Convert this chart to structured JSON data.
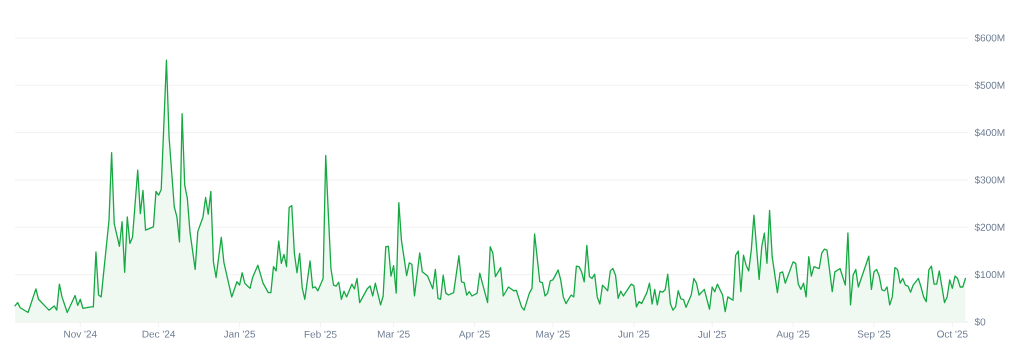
{
  "chart_data": {
    "type": "area",
    "color": "#16a843",
    "grid": "y",
    "x": [
      "2024-10-07",
      "2024-10-08",
      "2024-10-09",
      "2024-10-12",
      "2024-10-15",
      "2024-10-16",
      "2024-10-20",
      "2024-10-22",
      "2024-10-23",
      "2024-10-24",
      "2024-10-25",
      "2024-10-27",
      "2024-10-30",
      "2024-10-31",
      "2024-11-01",
      "2024-11-02",
      "2024-11-05",
      "2024-11-06",
      "2024-11-07",
      "2024-11-08",
      "2024-11-09",
      "2024-11-12",
      "2024-11-13",
      "2024-11-14",
      "2024-11-16",
      "2024-11-17",
      "2024-11-18",
      "2024-11-19",
      "2024-11-20",
      "2024-11-21",
      "2024-11-23",
      "2024-11-24",
      "2024-11-25",
      "2024-11-26",
      "2024-11-29",
      "2024-11-30",
      "2024-12-01",
      "2024-12-02",
      "2024-12-04",
      "2024-12-05",
      "2024-12-07",
      "2024-12-08",
      "2024-12-09",
      "2024-12-10",
      "2024-12-11",
      "2024-12-12",
      "2024-12-13",
      "2024-12-15",
      "2024-12-16",
      "2024-12-18",
      "2024-12-19",
      "2024-12-20",
      "2024-12-21",
      "2024-12-22",
      "2024-12-23",
      "2024-12-25",
      "2024-12-26",
      "2024-12-29",
      "2024-12-31",
      "2025-01-01",
      "2025-01-02",
      "2025-01-03",
      "2025-01-05",
      "2025-01-06",
      "2025-01-08",
      "2025-01-10",
      "2025-01-12",
      "2025-01-13",
      "2025-01-14",
      "2025-01-15",
      "2025-01-16",
      "2025-01-17",
      "2025-01-18",
      "2025-01-19",
      "2025-01-20",
      "2025-01-21",
      "2025-01-22",
      "2025-01-23",
      "2025-01-24",
      "2025-01-25",
      "2025-01-26",
      "2025-01-28",
      "2025-01-29",
      "2025-01-30",
      "2025-01-31",
      "2025-02-02",
      "2025-02-03",
      "2025-02-04",
      "2025-02-05",
      "2025-02-06",
      "2025-02-07",
      "2025-02-08",
      "2025-02-09",
      "2025-02-10",
      "2025-02-11",
      "2025-02-13",
      "2025-02-14",
      "2025-02-15",
      "2025-02-16",
      "2025-02-19",
      "2025-02-20",
      "2025-02-21",
      "2025-02-22",
      "2025-02-24",
      "2025-02-25",
      "2025-02-26",
      "2025-02-27",
      "2025-02-28",
      "2025-03-01",
      "2025-03-02",
      "2025-03-03",
      "2025-03-04",
      "2025-03-06",
      "2025-03-07",
      "2025-03-08",
      "2025-03-09",
      "2025-03-11",
      "2025-03-12",
      "2025-03-14",
      "2025-03-16",
      "2025-03-17",
      "2025-03-18",
      "2025-03-19",
      "2025-03-20",
      "2025-03-21",
      "2025-03-22",
      "2025-03-24",
      "2025-03-26",
      "2025-03-27",
      "2025-03-28",
      "2025-03-29",
      "2025-03-30",
      "2025-03-31",
      "2025-04-02",
      "2025-04-03",
      "2025-04-04",
      "2025-04-06",
      "2025-04-07",
      "2025-04-08",
      "2025-04-09",
      "2025-04-11",
      "2025-04-12",
      "2025-04-14",
      "2025-04-16",
      "2025-04-17",
      "2025-04-19",
      "2025-04-20",
      "2025-04-22",
      "2025-04-23",
      "2025-04-24",
      "2025-04-26",
      "2025-04-27",
      "2025-04-28",
      "2025-04-29",
      "2025-04-30",
      "2025-05-01",
      "2025-05-02",
      "2025-05-03",
      "2025-05-04",
      "2025-05-05",
      "2025-05-06",
      "2025-05-08",
      "2025-05-09",
      "2025-05-10",
      "2025-05-11",
      "2025-05-12",
      "2025-05-13",
      "2025-05-14",
      "2025-05-15",
      "2025-05-16",
      "2025-05-17",
      "2025-05-18",
      "2025-05-19",
      "2025-05-20",
      "2025-05-22",
      "2025-05-23",
      "2025-05-24",
      "2025-05-25",
      "2025-05-26",
      "2025-05-27",
      "2025-05-28",
      "2025-05-31",
      "2025-06-01",
      "2025-06-02",
      "2025-06-03",
      "2025-06-04",
      "2025-06-06",
      "2025-06-07",
      "2025-06-08",
      "2025-06-09",
      "2025-06-10",
      "2025-06-11",
      "2025-06-12",
      "2025-06-13",
      "2025-06-14",
      "2025-06-15",
      "2025-06-16",
      "2025-06-17",
      "2025-06-18",
      "2025-06-19",
      "2025-06-20",
      "2025-06-21",
      "2025-06-23",
      "2025-06-24",
      "2025-06-25",
      "2025-06-26",
      "2025-06-28",
      "2025-06-30",
      "2025-07-01",
      "2025-07-02",
      "2025-07-03",
      "2025-07-05",
      "2025-07-06",
      "2025-07-07",
      "2025-07-09",
      "2025-07-10",
      "2025-07-11",
      "2025-07-12",
      "2025-07-13",
      "2025-07-14",
      "2025-07-15",
      "2025-07-16",
      "2025-07-17",
      "2025-07-19",
      "2025-07-20",
      "2025-07-21",
      "2025-07-22",
      "2025-07-23",
      "2025-07-24",
      "2025-07-26",
      "2025-07-27",
      "2025-07-28",
      "2025-07-29",
      "2025-08-01",
      "2025-08-02",
      "2025-08-03",
      "2025-08-04",
      "2025-08-05",
      "2025-08-06",
      "2025-08-07",
      "2025-08-08",
      "2025-08-09",
      "2025-08-11",
      "2025-08-12",
      "2025-08-13",
      "2025-08-14",
      "2025-08-16",
      "2025-08-17",
      "2025-08-19",
      "2025-08-21",
      "2025-08-22",
      "2025-08-23",
      "2025-08-24",
      "2025-08-25",
      "2025-08-26",
      "2025-08-30",
      "2025-08-31",
      "2025-09-01",
      "2025-09-02",
      "2025-09-03",
      "2025-09-04",
      "2025-09-05",
      "2025-09-06",
      "2025-09-07",
      "2025-09-08",
      "2025-09-09",
      "2025-09-10",
      "2025-09-11",
      "2025-09-12",
      "2025-09-13",
      "2025-09-14",
      "2025-09-15",
      "2025-09-16",
      "2025-09-18",
      "2025-09-19",
      "2025-09-20",
      "2025-09-21",
      "2025-09-22",
      "2025-09-23",
      "2025-09-24",
      "2025-09-25",
      "2025-09-26",
      "2025-09-27",
      "2025-09-28",
      "2025-09-29",
      "2025-09-30",
      "2025-10-01",
      "2025-10-02",
      "2025-10-03",
      "2025-10-04",
      "2025-10-05",
      "2025-10-06"
    ],
    "values": [
      34,
      41,
      30,
      20,
      70,
      48,
      25,
      34,
      25,
      80,
      53,
      20,
      56,
      35,
      48,
      29,
      32,
      32,
      148,
      57,
      53,
      215,
      358,
      208,
      160,
      212,
      105,
      222,
      166,
      179,
      321,
      229,
      278,
      194,
      201,
      276,
      268,
      280,
      553,
      391,
      243,
      222,
      169,
      440,
      289,
      261,
      191,
      111,
      191,
      222,
      263,
      228,
      276,
      127,
      94,
      179,
      126,
      53,
      85,
      78,
      104,
      82,
      71,
      94,
      120,
      82,
      62,
      62,
      117,
      108,
      171,
      124,
      143,
      117,
      242,
      246,
      145,
      104,
      145,
      72,
      48,
      129,
      72,
      74,
      66,
      92,
      352,
      229,
      113,
      78,
      76,
      84,
      48,
      65,
      53,
      80,
      70,
      92,
      41,
      71,
      76,
      55,
      82,
      36,
      55,
      159,
      160,
      97,
      119,
      61,
      252,
      173,
      98,
      125,
      122,
      55,
      146,
      106,
      97,
      70,
      111,
      50,
      48,
      99,
      61,
      57,
      62,
      140,
      85,
      83,
      57,
      64,
      55,
      61,
      103,
      82,
      41,
      159,
      146,
      96,
      115,
      55,
      74,
      66,
      67,
      32,
      25,
      61,
      71,
      186,
      85,
      83,
      55,
      61,
      87,
      89,
      99,
      110,
      89,
      53,
      39,
      57,
      53,
      118,
      117,
      106,
      85,
      162,
      96,
      92,
      101,
      53,
      38,
      78,
      66,
      108,
      113,
      99,
      50,
      65,
      55,
      80,
      77,
      32,
      43,
      39,
      62,
      82,
      38,
      69,
      36,
      65,
      63,
      68,
      101,
      39,
      25,
      32,
      66,
      49,
      48,
      31,
      57,
      92,
      82,
      57,
      69,
      27,
      74,
      64,
      80,
      57,
      22,
      53,
      46,
      141,
      150,
      64,
      141,
      120,
      108,
      152,
      226,
      90,
      159,
      188,
      124,
      236,
      138,
      62,
      104,
      106,
      82,
      127,
      124,
      80,
      69,
      82,
      53,
      138,
      97,
      117,
      113,
      146,
      154,
      152,
      64,
      106,
      113,
      78,
      188,
      36,
      99,
      111,
      74,
      139,
      69,
      106,
      111,
      97,
      68,
      66,
      74,
      36,
      53,
      115,
      111,
      82,
      92,
      78,
      76,
      63,
      78,
      92,
      74,
      53,
      43,
      110,
      118,
      80,
      80,
      108,
      74,
      41,
      53,
      89,
      71,
      97,
      92,
      74,
      74,
      92
    ],
    "xlim": [
      "2024-10-07",
      "2025-10-07"
    ],
    "xticks": [
      {
        "value": "2024-11-01",
        "label": "Nov '24"
      },
      {
        "value": "2024-12-01",
        "label": "Dec '24"
      },
      {
        "value": "2025-01-01",
        "label": "Jan '25"
      },
      {
        "value": "2025-02-01",
        "label": "Feb '25"
      },
      {
        "value": "2025-03-01",
        "label": "Mar '25"
      },
      {
        "value": "2025-04-01",
        "label": "Apr '25"
      },
      {
        "value": "2025-05-01",
        "label": "May '25"
      },
      {
        "value": "2025-06-01",
        "label": "Jun '25"
      },
      {
        "value": "2025-07-01",
        "label": "Jul '25"
      },
      {
        "value": "2025-08-01",
        "label": "Aug '25"
      },
      {
        "value": "2025-09-01",
        "label": "Sep '25"
      },
      {
        "value": "2025-10-01",
        "label": "Oct '25"
      }
    ],
    "ylim": [
      0,
      600
    ],
    "yticks": [
      {
        "value": 0,
        "label": "$0"
      },
      {
        "value": 100,
        "label": "$100M"
      },
      {
        "value": 200,
        "label": "$200M"
      },
      {
        "value": 300,
        "label": "$300M"
      },
      {
        "value": 400,
        "label": "$400M"
      },
      {
        "value": 500,
        "label": "$500M"
      },
      {
        "value": 600,
        "label": "$600M"
      }
    ]
  }
}
